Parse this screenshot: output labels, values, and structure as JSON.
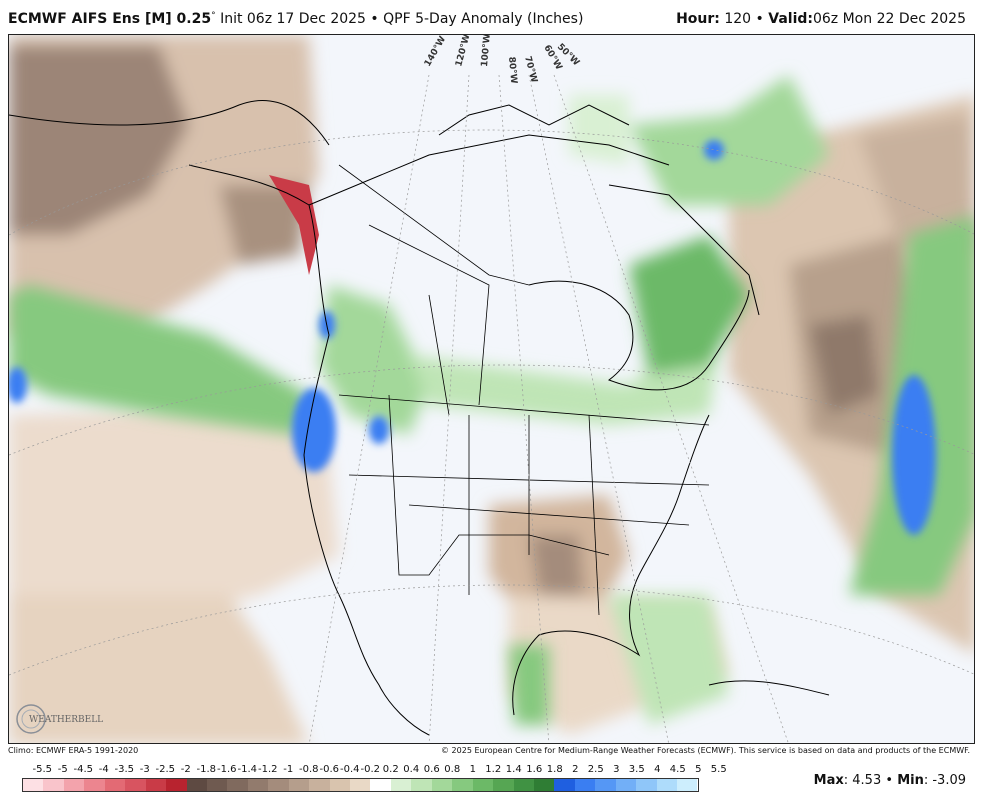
{
  "header": {
    "model": "ECMWF AIFS Ens [M] 0.25",
    "degree_mark": "°",
    "init": "Init 06z 17 Dec 2025",
    "separator": "•",
    "product": "QPF 5-Day Anomaly (Inches)",
    "hour_label": "Hour:",
    "hour_value": "120",
    "valid_label": "Valid:",
    "valid_value": "06z Mon 22 Dec 2025"
  },
  "map": {
    "longitude_labels": [
      "140°W",
      "120°W",
      "100°W",
      "80°W",
      "70°W",
      "60°W",
      "50°W"
    ],
    "logo_text": "WEATHERBELL"
  },
  "footer": {
    "climo": "Climo: ECMWF ERA-5 1991-2020",
    "copyright": "© 2025 European Centre for Medium-Range Weather Forecasts (ECMWF). This service is based on data and products of the ECMWF."
  },
  "colorbar": {
    "labels": [
      "-5.5",
      "-5",
      "-4.5",
      "-4",
      "-3.5",
      "-3",
      "-2.5",
      "-2",
      "-1.8",
      "-1.6",
      "-1.4",
      "-1.2",
      "-1",
      "-0.8",
      "-0.6",
      "-0.4",
      "-0.2",
      "0.2",
      "0.4",
      "0.6",
      "0.8",
      "1",
      "1.2",
      "1.4",
      "1.6",
      "1.8",
      "2",
      "2.5",
      "3",
      "3.5",
      "4",
      "4.5",
      "5",
      "5.5"
    ],
    "colors": [
      "#fde0e4",
      "#f9c4cb",
      "#f3a3ac",
      "#ec858f",
      "#e36a74",
      "#d85460",
      "#c93b47",
      "#b8232f",
      "#5e4a42",
      "#6f5a50",
      "#806a5e",
      "#927b6d",
      "#a48c7c",
      "#b59e8c",
      "#c8b19d",
      "#d9c4ae",
      "#e9d9c6",
      "#ffffff",
      "#d9f0d3",
      "#bfe5b6",
      "#a3d89a",
      "#86c97f",
      "#6cb967",
      "#56a653",
      "#409243",
      "#2f7d34",
      "#1f5fe0",
      "#3a7ef2",
      "#5597f5",
      "#72aff7",
      "#8fc6f9",
      "#aedcfb",
      "#cdeefd"
    ],
    "max_label": "Max",
    "max_value": "4.53",
    "min_label": "Min",
    "min_value": "-3.09"
  }
}
